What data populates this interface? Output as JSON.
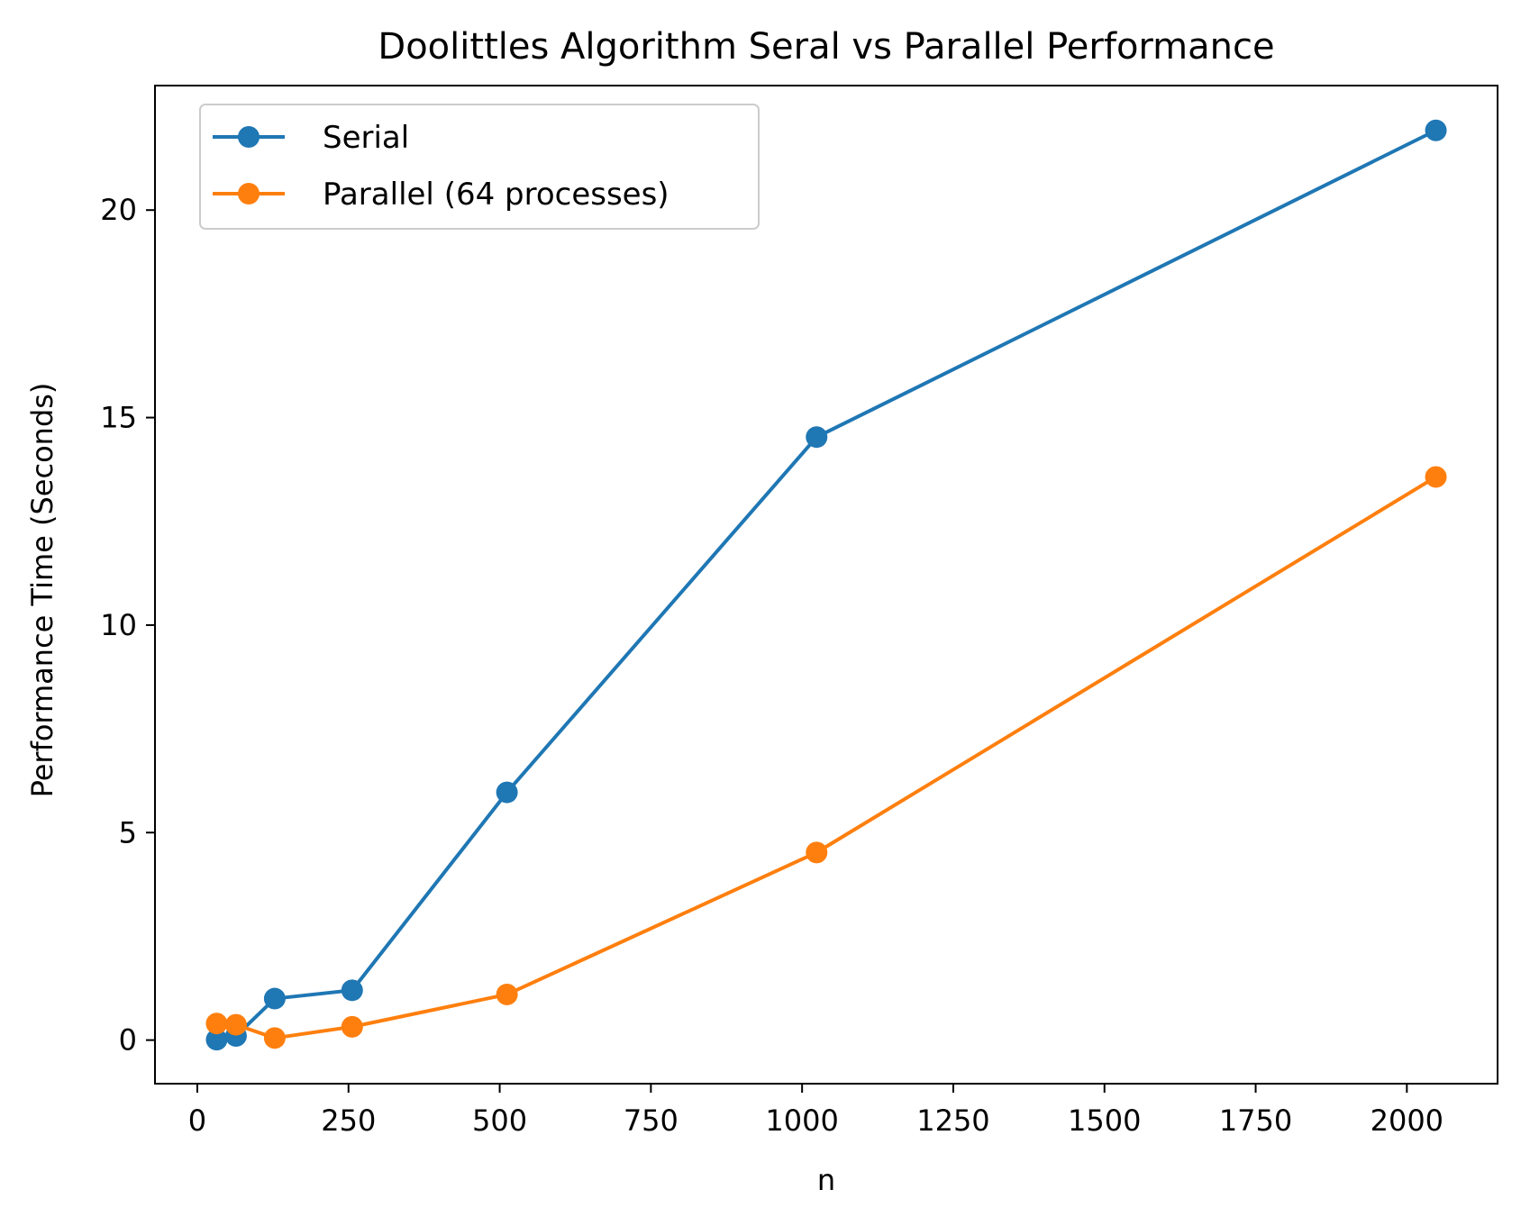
{
  "chart_data": {
    "type": "line",
    "title": "Doolittles Algorithm Seral vs Parallel Performance",
    "xlabel": "n",
    "ylabel": "Performance Time (Seconds)",
    "xlim": [
      -70,
      2150
    ],
    "ylim": [
      -1.05,
      23.0
    ],
    "xticks": [
      0,
      250,
      500,
      750,
      1000,
      1250,
      1500,
      1750,
      2000
    ],
    "xtick_labels": [
      "0",
      "250",
      "500",
      "750",
      "1000",
      "1250",
      "1500",
      "1750",
      "2000"
    ],
    "yticks": [
      0,
      5,
      10,
      15,
      20
    ],
    "ytick_labels": [
      "0",
      "5",
      "10",
      "15",
      "20"
    ],
    "grid": false,
    "legend_position": "upper-left",
    "x": [
      32,
      64,
      128,
      256,
      512,
      1024,
      2048
    ],
    "series": [
      {
        "name": "Serial",
        "color": "#1f77b4",
        "values": [
          0.01,
          0.1,
          1.0,
          1.2,
          5.97,
          14.53,
          21.92
        ]
      },
      {
        "name": "Parallel (64 processes)",
        "color": "#ff7f0e",
        "values": [
          0.4,
          0.37,
          0.05,
          0.32,
          1.1,
          4.52,
          13.57
        ]
      }
    ]
  }
}
